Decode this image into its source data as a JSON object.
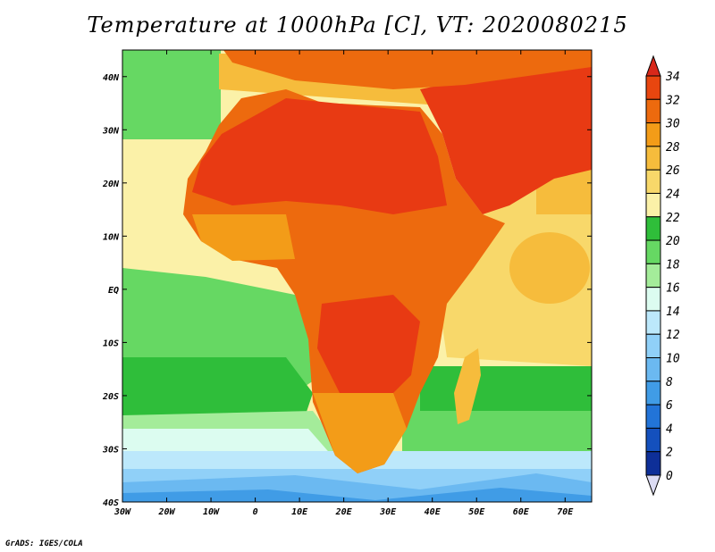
{
  "title": "Temperature at 1000hPa [C], VT: 2020080215",
  "credit": "GrADS: IGES/COLA",
  "map": {
    "variable": "Temperature",
    "level": "1000hPa",
    "units": "C",
    "valid_time": "2020080215",
    "lon_range": [
      -30,
      76
    ],
    "lat_range": [
      -40,
      45
    ],
    "x_tick_labels": [
      "30W",
      "20W",
      "10W",
      "0",
      "10E",
      "20E",
      "30E",
      "40E",
      "50E",
      "60E",
      "70E"
    ],
    "y_tick_labels": [
      "40N",
      "30N",
      "20N",
      "10N",
      "EQ",
      "10S",
      "20S",
      "30S",
      "40S"
    ]
  },
  "colorbar": {
    "labels": [
      "34",
      "32",
      "30",
      "28",
      "26",
      "24",
      "22",
      "20",
      "18",
      "16",
      "14",
      "12",
      "10",
      "8",
      "6",
      "4",
      "2",
      "0"
    ],
    "colors": [
      "#e83a13",
      "#e8460f",
      "#ed6a0e",
      "#f39c18",
      "#f6bc3c",
      "#f8d86a",
      "#fbf1a8",
      "#2fbe3a",
      "#66d863",
      "#a4ec9a",
      "#dcfcf0",
      "#bce8fb",
      "#90d0f8",
      "#6bb9f1",
      "#409ce6",
      "#2274d8",
      "#1450bd",
      "#0e2f98",
      "#0c1f73"
    ],
    "top_arrow_color": "#d8281a",
    "bottom_arrow_color": "#dcdcf4"
  }
}
